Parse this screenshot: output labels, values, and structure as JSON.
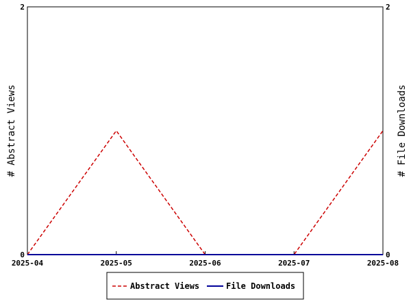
{
  "chart_data": {
    "type": "line",
    "x": [
      "2025-04",
      "2025-05",
      "2025-06",
      "2025-07",
      "2025-08"
    ],
    "y_left": {
      "label": "# Abstract Views",
      "range": [
        0,
        2
      ],
      "ticks": [
        "0",
        "2"
      ]
    },
    "y_right": {
      "label": "# File Downloads",
      "range": [
        0,
        2
      ],
      "ticks": [
        "0",
        "2"
      ]
    },
    "series": [
      {
        "name": "Abstract Views",
        "axis": "left",
        "values": [
          0,
          1,
          0,
          0,
          1
        ],
        "color": "#cc0000",
        "dash": "dashed"
      },
      {
        "name": "File Downloads",
        "axis": "right",
        "values": [
          0,
          0,
          0,
          0,
          0
        ],
        "color": "#000099",
        "dash": "solid"
      }
    ],
    "grid": false,
    "legend_position": "bottom-center"
  }
}
